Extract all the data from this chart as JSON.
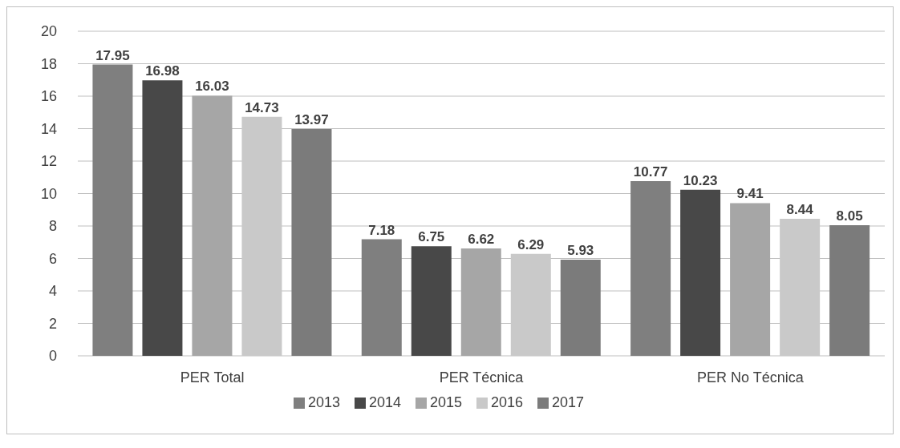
{
  "chart_data": {
    "type": "bar",
    "categories": [
      "PER Total",
      "PER Técnica",
      "PER No Técnica"
    ],
    "series": [
      {
        "name": "2013",
        "color": "#7f7f7f",
        "values": [
          17.95,
          7.18,
          10.77
        ]
      },
      {
        "name": "2014",
        "color": "#484848",
        "values": [
          16.98,
          6.75,
          10.23
        ]
      },
      {
        "name": "2015",
        "color": "#a6a6a6",
        "values": [
          16.03,
          6.62,
          9.41
        ]
      },
      {
        "name": "2016",
        "color": "#c9c9c9",
        "values": [
          14.73,
          6.29,
          8.44
        ]
      },
      {
        "name": "2017",
        "color": "#7b7b7b",
        "values": [
          13.97,
          5.93,
          8.05
        ]
      }
    ],
    "ylim": [
      0,
      20
    ],
    "yticks": [
      0,
      2,
      4,
      6,
      8,
      10,
      12,
      14,
      16,
      18,
      20
    ],
    "grid": "y",
    "legend": "bottom",
    "data_labels": true
  }
}
